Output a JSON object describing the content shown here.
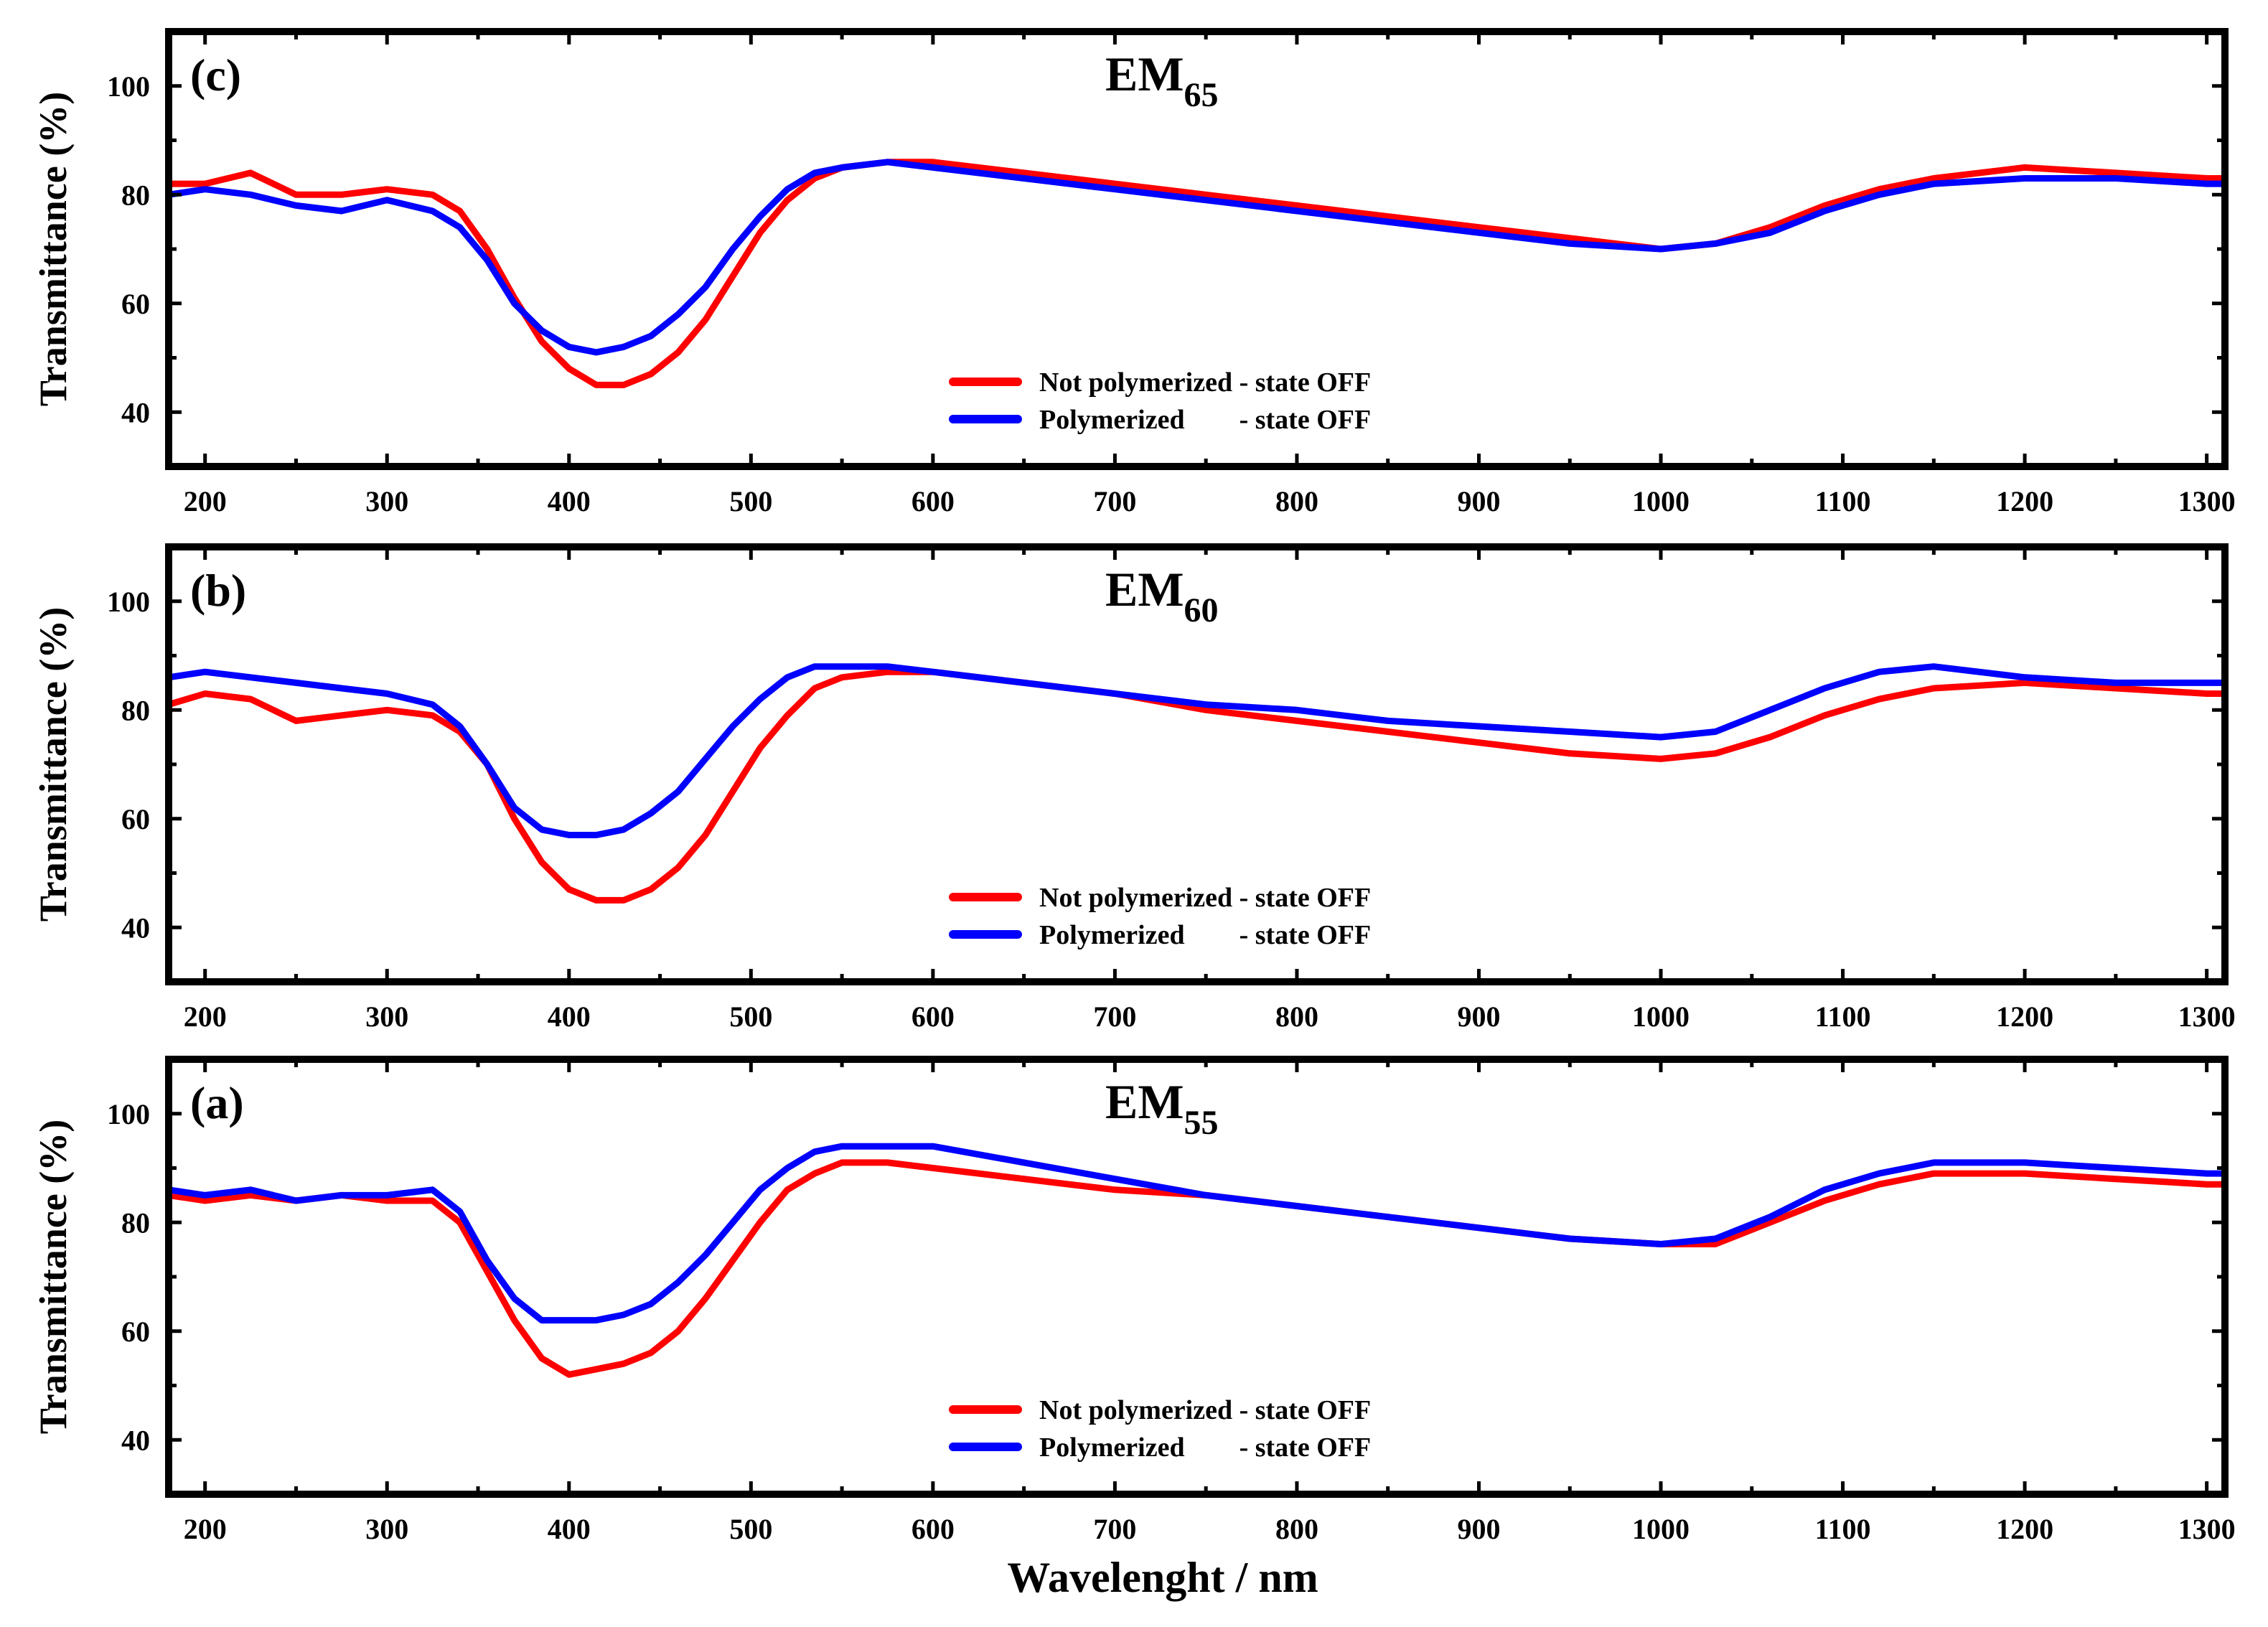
{
  "chart_data": [
    {
      "type": "line",
      "panel_label": "(c)",
      "title_main": "EM",
      "title_sub": "65",
      "xlabel": "",
      "ylabel": "Transmittance (%)",
      "xlim": [
        180,
        1310
      ],
      "ylim": [
        30,
        110
      ],
      "xticks": [
        200,
        300,
        400,
        500,
        600,
        700,
        800,
        900,
        1000,
        1100,
        1200,
        1300
      ],
      "yticks": [
        40,
        60,
        80,
        100
      ],
      "legend": [
        "Not polymerized - state OFF",
        "Polymerized        - state OFF"
      ],
      "series": [
        {
          "name": "Not polymerized - state OFF",
          "color": "#ff0000",
          "x": [
            180,
            200,
            225,
            250,
            275,
            300,
            325,
            340,
            355,
            370,
            385,
            400,
            415,
            430,
            445,
            460,
            475,
            490,
            505,
            520,
            535,
            550,
            575,
            600,
            650,
            700,
            750,
            800,
            850,
            900,
            950,
            1000,
            1030,
            1060,
            1090,
            1120,
            1150,
            1200,
            1250,
            1300,
            1310
          ],
          "y": [
            82,
            82,
            84,
            80,
            80,
            81,
            80,
            77,
            70,
            61,
            53,
            48,
            45,
            45,
            47,
            51,
            57,
            65,
            73,
            79,
            83,
            85,
            86,
            86,
            84,
            82,
            80,
            78,
            76,
            74,
            72,
            70,
            71,
            74,
            78,
            81,
            83,
            85,
            84,
            83,
            83
          ]
        },
        {
          "name": "Polymerized        - state OFF",
          "color": "#0000ff",
          "x": [
            180,
            200,
            225,
            250,
            275,
            300,
            325,
            340,
            355,
            370,
            385,
            400,
            415,
            430,
            445,
            460,
            475,
            490,
            505,
            520,
            535,
            550,
            575,
            600,
            650,
            700,
            750,
            800,
            850,
            900,
            950,
            1000,
            1030,
            1060,
            1090,
            1120,
            1150,
            1200,
            1250,
            1300,
            1310
          ],
          "y": [
            80,
            81,
            80,
            78,
            77,
            79,
            77,
            74,
            68,
            60,
            55,
            52,
            51,
            52,
            54,
            58,
            63,
            70,
            76,
            81,
            84,
            85,
            86,
            85,
            83,
            81,
            79,
            77,
            75,
            73,
            71,
            70,
            71,
            73,
            77,
            80,
            82,
            83,
            83,
            82,
            82
          ]
        }
      ]
    },
    {
      "type": "line",
      "panel_label": "(b)",
      "title_main": "EM",
      "title_sub": "60",
      "xlabel": "",
      "ylabel": "Transmittance (%)",
      "xlim": [
        180,
        1310
      ],
      "ylim": [
        30,
        110
      ],
      "xticks": [
        200,
        300,
        400,
        500,
        600,
        700,
        800,
        900,
        1000,
        1100,
        1200,
        1300
      ],
      "yticks": [
        40,
        60,
        80,
        100
      ],
      "legend": [
        "Not polymerized - state OFF",
        "Polymerized        - state OFF"
      ],
      "series": [
        {
          "name": "Not polymerized - state OFF",
          "color": "#ff0000",
          "x": [
            180,
            200,
            225,
            250,
            275,
            300,
            325,
            340,
            355,
            370,
            385,
            400,
            415,
            430,
            445,
            460,
            475,
            490,
            505,
            520,
            535,
            550,
            575,
            600,
            650,
            700,
            750,
            800,
            850,
            900,
            950,
            1000,
            1030,
            1060,
            1090,
            1120,
            1150,
            1200,
            1250,
            1300,
            1310
          ],
          "y": [
            81,
            83,
            82,
            78,
            79,
            80,
            79,
            76,
            70,
            60,
            52,
            47,
            45,
            45,
            47,
            51,
            57,
            65,
            73,
            79,
            84,
            86,
            87,
            87,
            85,
            83,
            80,
            78,
            76,
            74,
            72,
            71,
            72,
            75,
            79,
            82,
            84,
            85,
            84,
            83,
            83
          ]
        },
        {
          "name": "Polymerized        - state OFF",
          "color": "#0000ff",
          "x": [
            180,
            200,
            225,
            250,
            275,
            300,
            325,
            340,
            355,
            370,
            385,
            400,
            415,
            430,
            445,
            460,
            475,
            490,
            505,
            520,
            535,
            550,
            575,
            600,
            650,
            700,
            750,
            800,
            850,
            900,
            950,
            1000,
            1030,
            1060,
            1090,
            1120,
            1150,
            1200,
            1250,
            1300,
            1310
          ],
          "y": [
            86,
            87,
            86,
            85,
            84,
            83,
            81,
            77,
            70,
            62,
            58,
            57,
            57,
            58,
            61,
            65,
            71,
            77,
            82,
            86,
            88,
            88,
            88,
            87,
            85,
            83,
            81,
            80,
            78,
            77,
            76,
            75,
            76,
            80,
            84,
            87,
            88,
            86,
            85,
            85,
            85
          ]
        }
      ]
    },
    {
      "type": "line",
      "panel_label": "(a)",
      "title_main": "EM",
      "title_sub": "55",
      "xlabel": "Wavelenght / nm",
      "ylabel": "Transmittance (%)",
      "xlim": [
        180,
        1310
      ],
      "ylim": [
        30,
        110
      ],
      "xticks": [
        200,
        300,
        400,
        500,
        600,
        700,
        800,
        900,
        1000,
        1100,
        1200,
        1300
      ],
      "yticks": [
        40,
        60,
        80,
        100
      ],
      "legend": [
        "Not polymerized - state OFF",
        "Polymerized        - state OFF"
      ],
      "series": [
        {
          "name": "Not polymerized - state OFF",
          "color": "#ff0000",
          "x": [
            180,
            200,
            225,
            250,
            275,
            300,
            325,
            340,
            355,
            370,
            385,
            400,
            415,
            430,
            445,
            460,
            475,
            490,
            505,
            520,
            535,
            550,
            575,
            600,
            650,
            700,
            750,
            800,
            850,
            900,
            950,
            1000,
            1030,
            1060,
            1090,
            1120,
            1150,
            1200,
            1250,
            1300,
            1310
          ],
          "y": [
            85,
            84,
            85,
            84,
            85,
            84,
            84,
            80,
            71,
            62,
            55,
            52,
            53,
            54,
            56,
            60,
            66,
            73,
            80,
            86,
            89,
            91,
            91,
            90,
            88,
            86,
            85,
            83,
            81,
            79,
            77,
            76,
            76,
            80,
            84,
            87,
            89,
            89,
            88,
            87,
            87
          ]
        },
        {
          "name": "Polymerized        - state OFF",
          "color": "#0000ff",
          "x": [
            180,
            200,
            225,
            250,
            275,
            300,
            325,
            340,
            355,
            370,
            385,
            400,
            415,
            430,
            445,
            460,
            475,
            490,
            505,
            520,
            535,
            550,
            575,
            600,
            650,
            700,
            750,
            800,
            850,
            900,
            950,
            1000,
            1030,
            1060,
            1090,
            1120,
            1150,
            1200,
            1250,
            1300,
            1310
          ],
          "y": [
            86,
            85,
            86,
            84,
            85,
            85,
            86,
            82,
            73,
            66,
            62,
            62,
            62,
            63,
            65,
            69,
            74,
            80,
            86,
            90,
            93,
            94,
            94,
            94,
            91,
            88,
            85,
            83,
            81,
            79,
            77,
            76,
            77,
            81,
            86,
            89,
            91,
            91,
            90,
            89,
            89
          ]
        }
      ]
    }
  ]
}
